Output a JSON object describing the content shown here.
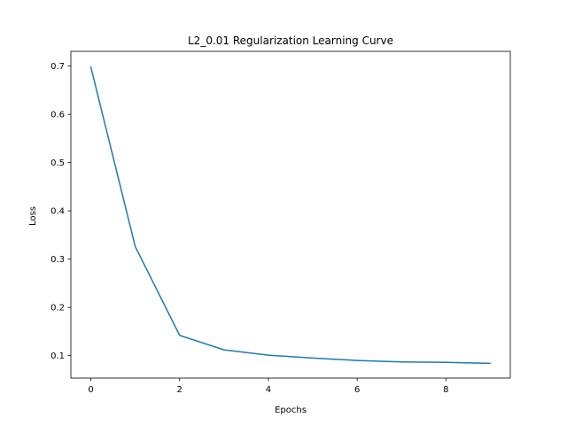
{
  "chart_data": {
    "type": "line",
    "title": "L2_0.01 Regularization Learning Curve",
    "xlabel": "Epochs",
    "ylabel": "Loss",
    "xlim": [
      -0.45,
      9.45
    ],
    "ylim": [
      0.0535,
      0.7305
    ],
    "xticks": [
      0,
      2,
      4,
      6,
      8
    ],
    "yticks": [
      0.1,
      0.2,
      0.3,
      0.4,
      0.5,
      0.6,
      0.7
    ],
    "grid": false,
    "series": [
      {
        "color": "#1f77b4",
        "x": [
          0,
          1,
          2,
          3,
          4,
          5,
          6,
          7,
          8,
          9
        ],
        "y": [
          0.698,
          0.326,
          0.142,
          0.112,
          0.101,
          0.095,
          0.09,
          0.087,
          0.086,
          0.084
        ]
      }
    ]
  }
}
